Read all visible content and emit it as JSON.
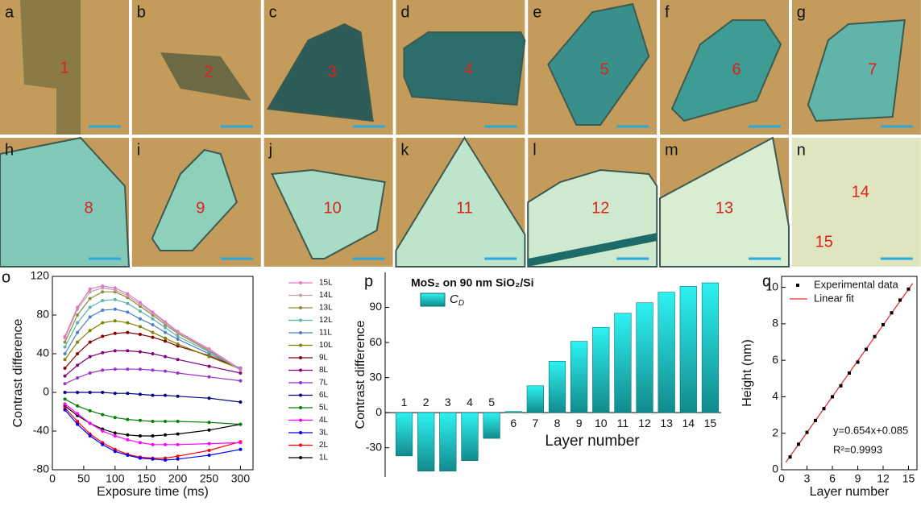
{
  "panels": [
    {
      "letter": "a",
      "labels": [
        "1"
      ]
    },
    {
      "letter": "b",
      "labels": [
        "2"
      ]
    },
    {
      "letter": "c",
      "labels": [
        "3"
      ]
    },
    {
      "letter": "d",
      "labels": [
        "4"
      ]
    },
    {
      "letter": "e",
      "labels": [
        "5"
      ]
    },
    {
      "letter": "f",
      "labels": [
        "6"
      ]
    },
    {
      "letter": "g",
      "labels": [
        "7"
      ]
    },
    {
      "letter": "h",
      "labels": [
        "8"
      ]
    },
    {
      "letter": "i",
      "labels": [
        "9"
      ]
    },
    {
      "letter": "j",
      "labels": [
        "10"
      ]
    },
    {
      "letter": "k",
      "labels": [
        "11"
      ]
    },
    {
      "letter": "l",
      "labels": [
        "12"
      ]
    },
    {
      "letter": "m",
      "labels": [
        "13"
      ]
    },
    {
      "letter": "n",
      "labels": [
        "14",
        "15"
      ]
    }
  ],
  "chart_data": [
    {
      "type": "line",
      "panel_label": "o",
      "x_label": "Exposure time (ms)",
      "y_label": "Contrast difference",
      "x": [
        20,
        40,
        60,
        80,
        100,
        120,
        140,
        160,
        180,
        200,
        250,
        300
      ],
      "xlim": [
        0,
        320
      ],
      "xticks": [
        0,
        50,
        100,
        150,
        200,
        250,
        300
      ],
      "ylim": [
        -80,
        120
      ],
      "yticks": [
        -80,
        -40,
        0,
        40,
        80,
        120
      ],
      "series": [
        {
          "name": "1L",
          "color": "#000000",
          "values": [
            -14,
            -24,
            -32,
            -38,
            -42,
            -44,
            -45,
            -45,
            -44,
            -43,
            -39,
            -33
          ]
        },
        {
          "name": "2L",
          "color": "#ff0000",
          "values": [
            -16,
            -30,
            -43,
            -52,
            -59,
            -64,
            -67,
            -68,
            -68,
            -66,
            -60,
            -51
          ]
        },
        {
          "name": "3L",
          "color": "#0000ff",
          "values": [
            -18,
            -33,
            -45,
            -54,
            -61,
            -65,
            -68,
            -69,
            -70,
            -69,
            -65,
            -59
          ]
        },
        {
          "name": "4L",
          "color": "#ff00ff",
          "values": [
            -12,
            -22,
            -32,
            -40,
            -45,
            -49,
            -52,
            -54,
            -54,
            -54,
            -53,
            -52
          ]
        },
        {
          "name": "5L",
          "color": "#008000",
          "values": [
            -7,
            -14,
            -19,
            -23,
            -26,
            -28,
            -29,
            -30,
            -30,
            -30,
            -31,
            -33
          ]
        },
        {
          "name": "6L",
          "color": "#000080",
          "values": [
            0,
            0,
            0,
            0,
            -1,
            -1,
            -2,
            -3,
            -3,
            -4,
            -6,
            -10
          ]
        },
        {
          "name": "7L",
          "color": "#9932cc",
          "values": [
            9,
            15,
            20,
            23,
            24,
            24,
            24,
            23,
            22,
            20,
            16,
            12
          ]
        },
        {
          "name": "8L",
          "color": "#800080",
          "values": [
            17,
            28,
            37,
            41,
            43,
            43,
            42,
            40,
            37,
            34,
            27,
            20
          ]
        },
        {
          "name": "9L",
          "color": "#800000",
          "values": [
            25,
            40,
            52,
            58,
            61,
            62,
            60,
            57,
            53,
            48,
            38,
            25
          ]
        },
        {
          "name": "10L",
          "color": "#808000",
          "values": [
            34,
            52,
            64,
            72,
            74,
            72,
            68,
            62,
            56,
            50,
            37,
            24
          ]
        },
        {
          "name": "11L",
          "color": "#4a7fc0",
          "values": [
            40,
            62,
            78,
            85,
            86,
            83,
            76,
            70,
            62,
            55,
            40,
            25
          ]
        },
        {
          "name": "12L",
          "color": "#5ab4ac",
          "values": [
            47,
            72,
            88,
            95,
            96,
            92,
            84,
            76,
            67,
            58,
            42,
            24
          ]
        },
        {
          "name": "13L",
          "color": "#8c8c3c",
          "values": [
            52,
            80,
            97,
            104,
            104,
            98,
            89,
            80,
            70,
            61,
            43,
            23
          ]
        },
        {
          "name": "14L",
          "color": "#c0a0b0",
          "values": [
            56,
            86,
            104,
            108,
            106,
            100,
            91,
            82,
            72,
            62,
            44,
            23
          ]
        },
        {
          "name": "15L",
          "color": "#e377c2",
          "values": [
            58,
            88,
            107,
            110,
            108,
            102,
            93,
            83,
            73,
            63,
            45,
            24
          ]
        }
      ]
    },
    {
      "type": "bar",
      "panel_label": "p",
      "annotation": "MoS₂ on 90 nm SiO₂/Si",
      "x_label": "Layer number",
      "y_label": "Contrast difference",
      "categories": [
        "1",
        "2",
        "3",
        "4",
        "5",
        "6",
        "7",
        "8",
        "9",
        "10",
        "11",
        "12",
        "13",
        "14",
        "15"
      ],
      "ylim": [
        -55,
        120
      ],
      "yticks": [
        -30,
        0,
        30,
        60,
        90
      ],
      "series": [
        {
          "name": "CD",
          "color": "#1fc9cf",
          "values": [
            -37,
            -50,
            -50,
            -41,
            -22,
            1,
            23,
            44,
            61,
            73,
            85,
            94,
            103,
            108,
            111
          ]
        }
      ]
    },
    {
      "type": "scatter",
      "panel_label": "q",
      "x_label": "Layer number",
      "y_label": "Height (nm)",
      "x": [
        1,
        2,
        3,
        4,
        5,
        6,
        7,
        8,
        9,
        10,
        11,
        12,
        13,
        14,
        15
      ],
      "xlim": [
        0,
        16
      ],
      "xticks": [
        0,
        3,
        6,
        9,
        12,
        15
      ],
      "ylim": [
        0,
        10.6
      ],
      "yticks": [
        0,
        2,
        4,
        6,
        8,
        10
      ],
      "series": [
        {
          "name": "Experimental data",
          "color": "#000000",
          "values": [
            0.7,
            1.4,
            2.05,
            2.7,
            3.35,
            4.0,
            4.6,
            5.3,
            5.9,
            6.6,
            7.3,
            7.95,
            8.6,
            9.3,
            9.9
          ]
        }
      ],
      "fit": {
        "name": "Linear fit",
        "color": "#e03030",
        "x": [
          0.5,
          15.5
        ],
        "values": [
          0.41,
          10.22
        ]
      },
      "annotations": [
        "y=0.654x+0.085",
        "R²=0.9993"
      ]
    }
  ]
}
